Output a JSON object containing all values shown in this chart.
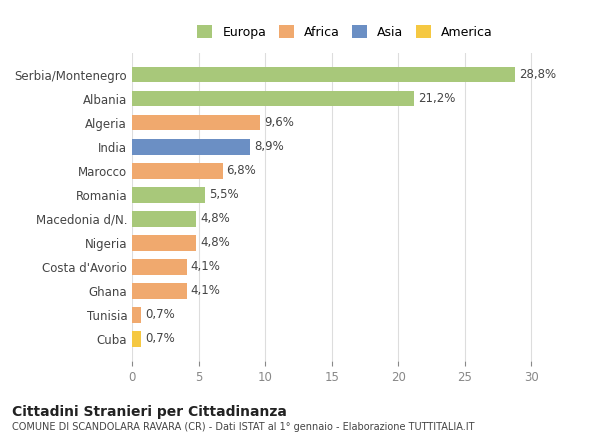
{
  "categories": [
    "Serbia/Montenegro",
    "Albania",
    "Algeria",
    "India",
    "Marocco",
    "Romania",
    "Macedonia d/N.",
    "Nigeria",
    "Costa d'Avorio",
    "Ghana",
    "Tunisia",
    "Cuba"
  ],
  "values": [
    28.8,
    21.2,
    9.6,
    8.9,
    6.8,
    5.5,
    4.8,
    4.8,
    4.1,
    4.1,
    0.7,
    0.7
  ],
  "labels": [
    "28,8%",
    "21,2%",
    "9,6%",
    "8,9%",
    "6,8%",
    "5,5%",
    "4,8%",
    "4,8%",
    "4,1%",
    "4,1%",
    "0,7%",
    "0,7%"
  ],
  "colors": [
    "#a8c87a",
    "#a8c87a",
    "#f0a96e",
    "#6b8fc4",
    "#f0a96e",
    "#a8c87a",
    "#a8c87a",
    "#f0a96e",
    "#f0a96e",
    "#f0a96e",
    "#f0a96e",
    "#f5c842"
  ],
  "legend_labels": [
    "Europa",
    "Africa",
    "Asia",
    "America"
  ],
  "legend_colors": [
    "#a8c87a",
    "#f0a96e",
    "#6b8fc4",
    "#f5c842"
  ],
  "title": "Cittadini Stranieri per Cittadinanza",
  "subtitle": "COMUNE DI SCANDOLARA RAVARA (CR) - Dati ISTAT al 1° gennaio - Elaborazione TUTTITALIA.IT",
  "xlim": [
    0,
    32
  ],
  "xticks": [
    0,
    5,
    10,
    15,
    20,
    25,
    30
  ],
  "bg_color": "#ffffff",
  "grid_color": "#dddddd",
  "bar_height": 0.65
}
